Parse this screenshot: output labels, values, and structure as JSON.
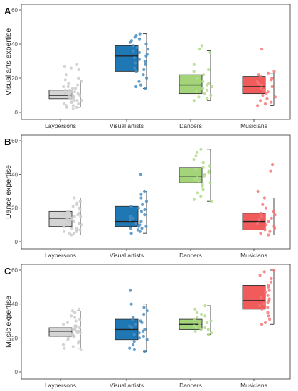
{
  "chart_data": [
    {
      "type": "box",
      "panel_letter": "A",
      "ylabel": "Visual arts expertise",
      "xlabel": "",
      "ylim": [
        0,
        60
      ],
      "yticks": [
        "0",
        "20",
        "40",
        "60"
      ],
      "grid": false,
      "categories": [
        "Laypersons",
        "Visual artists",
        "Dancers",
        "Musicians"
      ],
      "colors": [
        "#d4d4d4",
        "#1f77b4",
        "#a3d47a",
        "#f05b5b"
      ],
      "point_colors": [
        "#cdcdcd",
        "#4a8fc4",
        "#b3dd8c",
        "#f47878"
      ],
      "series": [
        {
          "category": "Laypersons",
          "box": {
            "min": 3,
            "q1": 8,
            "median": 10,
            "q3": 13,
            "max": 19
          },
          "points": [
            28,
            27,
            26,
            25,
            22,
            20,
            19,
            18,
            17,
            16,
            15,
            15,
            14,
            14,
            13,
            13,
            12,
            12,
            12,
            11,
            11,
            10,
            10,
            10,
            9,
            9,
            9,
            8,
            8,
            8,
            7,
            7,
            7,
            6,
            6,
            5,
            5,
            4,
            4,
            3,
            3,
            2
          ]
        },
        {
          "category": "Visual artists",
          "box": {
            "min": 14,
            "q1": 24,
            "median": 33,
            "q3": 39,
            "max": 46
          },
          "points": [
            46,
            45,
            44,
            43,
            42,
            41,
            40,
            39,
            38,
            37,
            36,
            35,
            34,
            33,
            32,
            31,
            30,
            29,
            28,
            26,
            25,
            24,
            22,
            20,
            18,
            16,
            15,
            14
          ]
        },
        {
          "category": "Dancers",
          "box": {
            "min": 7,
            "q1": 11,
            "median": 16,
            "q3": 22,
            "max": 36
          },
          "points": [
            39,
            37,
            35,
            28,
            25,
            24,
            22,
            20,
            18,
            17,
            16,
            15,
            14,
            13,
            12,
            11,
            10,
            9,
            8,
            7
          ]
        },
        {
          "category": "Musicians",
          "box": {
            "min": 4,
            "q1": 11,
            "median": 15,
            "q3": 21,
            "max": 23
          },
          "points": [
            37,
            24,
            23,
            22,
            21,
            20,
            19,
            18,
            17,
            16,
            15,
            14,
            13,
            12,
            11,
            10,
            9,
            8,
            7,
            6,
            5,
            4
          ]
        }
      ]
    },
    {
      "type": "box",
      "panel_letter": "B",
      "ylabel": "Dance expertise",
      "xlabel": "",
      "ylim": [
        0,
        60
      ],
      "yticks": [
        "0",
        "20",
        "40",
        "60"
      ],
      "grid": false,
      "categories": [
        "Laypersons",
        "Visual artists",
        "Dancers",
        "Musicians"
      ],
      "colors": [
        "#d4d4d4",
        "#1f77b4",
        "#a3d47a",
        "#f05b5b"
      ],
      "point_colors": [
        "#cdcdcd",
        "#4a8fc4",
        "#b3dd8c",
        "#f47878"
      ],
      "series": [
        {
          "category": "Laypersons",
          "box": {
            "min": 4,
            "q1": 9,
            "median": 14,
            "q3": 18,
            "max": 26
          },
          "points": [
            26,
            24,
            23,
            22,
            21,
            20,
            19,
            18,
            18,
            17,
            17,
            16,
            16,
            15,
            15,
            14,
            14,
            13,
            13,
            12,
            12,
            11,
            11,
            10,
            10,
            9,
            9,
            8,
            8,
            7,
            7,
            6,
            6,
            5,
            5,
            4
          ]
        },
        {
          "category": "Visual artists",
          "box": {
            "min": 5,
            "q1": 9,
            "median": 12,
            "q3": 21,
            "max": 30
          },
          "points": [
            40,
            30,
            28,
            26,
            24,
            22,
            21,
            20,
            19,
            18,
            16,
            15,
            14,
            13,
            12,
            11,
            10,
            9,
            9,
            8,
            8,
            7,
            6,
            5
          ]
        },
        {
          "category": "Dancers",
          "box": {
            "min": 24,
            "q1": 35,
            "median": 39,
            "q3": 44,
            "max": 55
          },
          "points": [
            55,
            53,
            51,
            49,
            47,
            45,
            44,
            43,
            42,
            41,
            40,
            39,
            38,
            37,
            36,
            35,
            34,
            33,
            31,
            29,
            27,
            25,
            24
          ]
        },
        {
          "category": "Musicians",
          "box": {
            "min": 4,
            "q1": 7,
            "median": 12,
            "q3": 17,
            "max": 26
          },
          "points": [
            46,
            42,
            30,
            26,
            22,
            20,
            18,
            17,
            16,
            15,
            14,
            13,
            12,
            11,
            10,
            9,
            8,
            7,
            6,
            5,
            4
          ]
        }
      ]
    },
    {
      "type": "box",
      "panel_letter": "C",
      "ylabel": "Music expertise",
      "xlabel": "",
      "ylim": [
        0,
        60
      ],
      "yticks": [
        "0",
        "20",
        "40",
        "60"
      ],
      "grid": false,
      "categories": [
        "Laypersons",
        "Visual artists",
        "Dancers",
        "Musicians"
      ],
      "colors": [
        "#d4d4d4",
        "#1f77b4",
        "#a3d47a",
        "#f05b5b"
      ],
      "point_colors": [
        "#cdcdcd",
        "#4a8fc4",
        "#b3dd8c",
        "#f47878"
      ],
      "series": [
        {
          "category": "Laypersons",
          "box": {
            "min": 14,
            "q1": 21,
            "median": 24,
            "q3": 26,
            "max": 36
          },
          "points": [
            37,
            36,
            35,
            33,
            32,
            31,
            30,
            29,
            28,
            27,
            27,
            26,
            26,
            25,
            25,
            24,
            24,
            23,
            23,
            22,
            22,
            21,
            21,
            20,
            19,
            18,
            17,
            16,
            15,
            14,
            13
          ]
        },
        {
          "category": "Visual artists",
          "box": {
            "min": 12,
            "q1": 19,
            "median": 25,
            "q3": 31,
            "max": 40
          },
          "points": [
            48,
            40,
            38,
            36,
            34,
            32,
            31,
            30,
            29,
            28,
            27,
            26,
            25,
            24,
            23,
            22,
            21,
            20,
            19,
            18,
            16,
            14,
            13,
            12
          ]
        },
        {
          "category": "Dancers",
          "box": {
            "min": 22,
            "q1": 25,
            "median": 28,
            "q3": 31,
            "max": 39
          },
          "points": [
            39,
            37,
            35,
            34,
            33,
            32,
            31,
            30,
            29,
            28,
            27,
            27,
            26,
            26,
            25,
            25,
            24,
            23,
            22
          ]
        },
        {
          "category": "Musicians",
          "box": {
            "min": 28,
            "q1": 37,
            "median": 42,
            "q3": 51,
            "max": 60
          },
          "points": [
            60,
            59,
            57,
            55,
            53,
            51,
            50,
            48,
            47,
            45,
            44,
            43,
            42,
            41,
            40,
            39,
            38,
            37,
            35,
            33,
            31,
            29,
            28
          ]
        }
      ]
    }
  ]
}
